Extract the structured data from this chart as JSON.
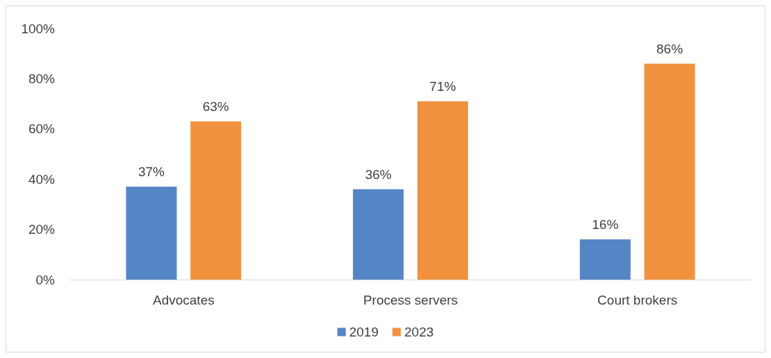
{
  "chart_data": {
    "type": "bar",
    "categories": [
      "Advocates",
      "Process servers",
      "Court brokers"
    ],
    "series": [
      {
        "name": "2019",
        "color": "#5585c5",
        "values": [
          37,
          36,
          16
        ],
        "value_labels": [
          "37%",
          "36%",
          "16%"
        ]
      },
      {
        "name": "2023",
        "color": "#f2923e",
        "values": [
          63,
          71,
          86
        ],
        "value_labels": [
          "63%",
          "71%",
          "86%"
        ]
      }
    ],
    "ylim": [
      0,
      100
    ],
    "yticks": [
      {
        "value": 0,
        "label": "0%"
      },
      {
        "value": 20,
        "label": "20%"
      },
      {
        "value": 40,
        "label": "40%"
      },
      {
        "value": 60,
        "label": "60%"
      },
      {
        "value": 80,
        "label": "80%"
      },
      {
        "value": 100,
        "label": "100%"
      }
    ],
    "grid": false,
    "legend": "bottom"
  }
}
